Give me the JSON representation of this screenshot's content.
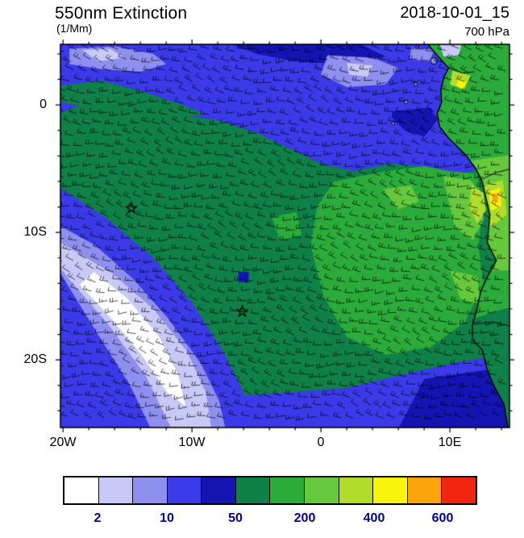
{
  "header": {
    "title": "550nm Extinction",
    "units": "(1/Mm)",
    "datetime": "2018-10-01_15",
    "level": "700 hPa"
  },
  "axes": {
    "y_ticks": [
      {
        "label": "0",
        "lat": 0
      },
      {
        "label": "10S",
        "lat": -10
      },
      {
        "label": "20S",
        "lat": -20
      }
    ],
    "x_ticks": [
      {
        "label": "20W",
        "lon": -20
      },
      {
        "label": "10W",
        "lon": -10
      },
      {
        "label": "0",
        "lon": 0
      },
      {
        "label": "10E",
        "lon": 10
      }
    ]
  },
  "colorbar": {
    "tick_labels": [
      "2",
      "10",
      "50",
      "200",
      "400",
      "600"
    ],
    "tick_boundaries": [
      1,
      3,
      5,
      7,
      9,
      11
    ],
    "label_color": "#000099"
  },
  "chart_data": {
    "type": "heatmap",
    "title": "550nm Extinction",
    "field": "550 nm aerosol extinction with wind barbs",
    "units": "1/Mm",
    "pressure_level": "700 hPa",
    "datetime": "2018-10-01_15",
    "extent": {
      "lon_min": -20.2,
      "lon_max": 14.62,
      "lat_min": -25.3,
      "lat_max": 4.75
    },
    "contour_levels": [
      2,
      5,
      10,
      25,
      50,
      100,
      200,
      300,
      400,
      500,
      600
    ],
    "palette": [
      "#ffffff",
      "#c9c9f7",
      "#8f8ff0",
      "#3a3ae8",
      "#1414b2",
      "#0e8048",
      "#2bab3a",
      "#66c83c",
      "#b2dc2c",
      "#f8f40a",
      "#fba40c",
      "#f32410"
    ],
    "ocean_base_level": 5,
    "land_base_level": 6,
    "regions": [
      {
        "name": "blue-top-band",
        "level": 3,
        "pts": [
          [
            -20.2,
            4.8
          ],
          [
            14.6,
            4.8
          ],
          [
            14.6,
            2.2
          ],
          [
            10.5,
            1.8
          ],
          [
            9.6,
            0.5
          ],
          [
            9.2,
            -0.8
          ],
          [
            9.6,
            -2.0
          ],
          [
            11.2,
            -3.9
          ],
          [
            12.1,
            -5.1
          ],
          [
            9.8,
            -5.6
          ],
          [
            7.6,
            -4.8
          ],
          [
            5.4,
            -4.6
          ],
          [
            2.5,
            -5.2
          ],
          [
            0.0,
            -4.6
          ],
          [
            -2.5,
            -3.4
          ],
          [
            -5.0,
            -2.2
          ],
          [
            -8.0,
            -1.2
          ],
          [
            -11.0,
            -0.8
          ],
          [
            -13.5,
            -0.2
          ],
          [
            -16.0,
            0.6
          ],
          [
            -18.0,
            0.2
          ],
          [
            -20.2,
            -0.6
          ]
        ]
      },
      {
        "name": "green-tongue-nw",
        "level": 5,
        "pts": [
          [
            -20.2,
            1.5
          ],
          [
            -17.0,
            1.9
          ],
          [
            -14.0,
            1.1
          ],
          [
            -11.0,
            0.1
          ],
          [
            -9.0,
            -0.7
          ],
          [
            -12.0,
            -1.3
          ],
          [
            -15.0,
            -0.8
          ],
          [
            -18.0,
            -0.2
          ],
          [
            -20.2,
            0.2
          ]
        ]
      },
      {
        "name": "darkblue-top-center",
        "level": 4,
        "pts": [
          [
            -7.0,
            4.8
          ],
          [
            3.0,
            4.8
          ],
          [
            5.0,
            3.8
          ],
          [
            2.0,
            3.2
          ],
          [
            -2.0,
            3.4
          ],
          [
            -5.0,
            4.0
          ]
        ]
      },
      {
        "name": "darkblue-right-center",
        "level": 4,
        "pts": [
          [
            5.5,
            -0.5
          ],
          [
            8.5,
            -0.2
          ],
          [
            9.0,
            -1.2
          ],
          [
            8.0,
            -2.5
          ],
          [
            6.5,
            -2.0
          ],
          [
            5.5,
            -1.0
          ]
        ]
      },
      {
        "name": "lavender-top-left",
        "level": 2,
        "pts": [
          [
            -19.5,
            4.4
          ],
          [
            -16.0,
            4.6
          ],
          [
            -13.0,
            4.0
          ],
          [
            -12.0,
            3.2
          ],
          [
            -14.0,
            2.6
          ],
          [
            -17.0,
            2.8
          ],
          [
            -19.5,
            3.2
          ]
        ]
      },
      {
        "name": "lavender-core-top-left",
        "level": 1,
        "pts": [
          [
            -18.5,
            4.3
          ],
          [
            -16.3,
            4.4
          ],
          [
            -15.3,
            3.7
          ],
          [
            -17.3,
            3.4
          ]
        ]
      },
      {
        "name": "lavender-top-center",
        "level": 2,
        "pts": [
          [
            0.5,
            3.9
          ],
          [
            4.0,
            3.7
          ],
          [
            6.0,
            2.9
          ],
          [
            5.0,
            1.6
          ],
          [
            2.0,
            1.4
          ],
          [
            0.0,
            2.4
          ]
        ]
      },
      {
        "name": "lavender-core-top-center",
        "level": 1,
        "pts": [
          [
            2.0,
            3.3
          ],
          [
            4.0,
            3.1
          ],
          [
            3.6,
            2.2
          ],
          [
            2.2,
            2.4
          ]
        ]
      },
      {
        "name": "lavender-top-right",
        "level": 2,
        "pts": [
          [
            7.0,
            4.5
          ],
          [
            8.8,
            4.3
          ],
          [
            8.4,
            3.4
          ],
          [
            6.9,
            3.6
          ]
        ]
      },
      {
        "name": "blue-sw-triangle",
        "level": 3,
        "pts": [
          [
            -20.2,
            -6.5
          ],
          [
            -16.5,
            -9.0
          ],
          [
            -13.0,
            -12.0
          ],
          [
            -10.0,
            -15.5
          ],
          [
            -7.5,
            -19.5
          ],
          [
            -5.8,
            -23.0
          ],
          [
            -5.2,
            -25.4
          ],
          [
            -20.2,
            -25.4
          ]
        ]
      },
      {
        "name": "lavender-sw-band",
        "level": 2,
        "pts": [
          [
            -20.2,
            -9.5
          ],
          [
            -17.5,
            -11.0
          ],
          [
            -14.5,
            -13.7
          ],
          [
            -11.8,
            -16.8
          ],
          [
            -9.3,
            -20.3
          ],
          [
            -7.9,
            -23.2
          ],
          [
            -7.4,
            -25.4
          ],
          [
            -13.2,
            -25.4
          ],
          [
            -14.8,
            -22.0
          ],
          [
            -17.3,
            -18.0
          ],
          [
            -20.2,
            -13.2
          ]
        ]
      },
      {
        "name": "light-sw-band",
        "level": 1,
        "pts": [
          [
            -20.2,
            -10.8
          ],
          [
            -16.2,
            -13.2
          ],
          [
            -13.0,
            -16.0
          ],
          [
            -10.4,
            -19.3
          ],
          [
            -8.9,
            -22.6
          ],
          [
            -8.5,
            -25.4
          ],
          [
            -11.6,
            -25.4
          ],
          [
            -13.6,
            -21.2
          ],
          [
            -16.5,
            -17.2
          ],
          [
            -19.4,
            -13.8
          ],
          [
            -20.2,
            -12.8
          ]
        ]
      },
      {
        "name": "white-sw-core",
        "level": 0,
        "pts": [
          [
            -17.6,
            -13.1
          ],
          [
            -15.1,
            -15.1
          ],
          [
            -12.6,
            -18.1
          ],
          [
            -11.1,
            -21.1
          ],
          [
            -10.5,
            -23.6
          ],
          [
            -11.9,
            -22.6
          ],
          [
            -13.9,
            -19.6
          ],
          [
            -16.4,
            -16.6
          ],
          [
            -18.7,
            -14.1
          ]
        ]
      },
      {
        "name": "blue-bottom-band",
        "level": 3,
        "pts": [
          [
            -6.0,
            -22.8
          ],
          [
            2.0,
            -22.2
          ],
          [
            7.0,
            -21.0
          ],
          [
            10.5,
            -20.2
          ],
          [
            14.6,
            -19.5
          ],
          [
            14.6,
            -25.4
          ],
          [
            -6.5,
            -25.4
          ]
        ]
      },
      {
        "name": "darkblue-bottom-right",
        "level": 4,
        "pts": [
          [
            8.0,
            -21.5
          ],
          [
            14.6,
            -20.5
          ],
          [
            14.6,
            -25.4
          ],
          [
            6.0,
            -25.4
          ]
        ]
      },
      {
        "name": "green-bright-main",
        "level": 6,
        "pts": [
          [
            1.0,
            -6.0
          ],
          [
            5.0,
            -5.2
          ],
          [
            8.0,
            -4.8
          ],
          [
            10.0,
            -5.2
          ],
          [
            12.1,
            -5.4
          ],
          [
            12.6,
            -8.0
          ],
          [
            12.2,
            -11.0
          ],
          [
            12.6,
            -14.0
          ],
          [
            11.2,
            -17.0
          ],
          [
            8.5,
            -19.0
          ],
          [
            5.0,
            -19.6
          ],
          [
            2.0,
            -18.2
          ],
          [
            0.2,
            -15.0
          ],
          [
            -0.8,
            -11.0
          ],
          [
            -0.3,
            -8.0
          ]
        ]
      },
      {
        "name": "green-bright-west-patch",
        "level": 6,
        "pts": [
          [
            -3.8,
            -8.8
          ],
          [
            -1.9,
            -8.4
          ],
          [
            -1.5,
            -10.2
          ],
          [
            -3.2,
            -10.6
          ]
        ]
      },
      {
        "name": "green-light-coastal-1",
        "level": 7,
        "pts": [
          [
            9.5,
            -5.6
          ],
          [
            11.6,
            -5.9
          ],
          [
            12.4,
            -7.0
          ],
          [
            12.6,
            -9.0
          ],
          [
            11.8,
            -10.6
          ],
          [
            10.4,
            -9.6
          ],
          [
            9.9,
            -7.6
          ]
        ]
      },
      {
        "name": "green-light-coastal-2",
        "level": 7,
        "pts": [
          [
            10.0,
            -13.0
          ],
          [
            12.1,
            -13.4
          ],
          [
            12.4,
            -15.6
          ],
          [
            10.8,
            -15.2
          ]
        ]
      },
      {
        "name": "green-light-center",
        "level": 7,
        "pts": [
          [
            4.8,
            -6.6
          ],
          [
            7.0,
            -6.3
          ],
          [
            7.6,
            -7.6
          ],
          [
            6.0,
            -8.2
          ]
        ]
      },
      {
        "name": "yellowgreen-coastal",
        "level": 8,
        "pts": [
          [
            11.7,
            -6.3
          ],
          [
            12.6,
            -6.9
          ],
          [
            12.8,
            -8.3
          ],
          [
            12.1,
            -9.3
          ],
          [
            11.5,
            -8.0
          ]
        ]
      },
      {
        "name": "darkblue-speck",
        "level": 4,
        "pts": [
          [
            -6.4,
            -13.1
          ],
          [
            -5.6,
            -13.1
          ],
          [
            -5.6,
            -13.9
          ],
          [
            -6.4,
            -13.9
          ]
        ]
      }
    ],
    "coastline": [
      [
        8.3,
        4.75
      ],
      [
        9.0,
        3.9
      ],
      [
        9.9,
        2.9
      ],
      [
        9.55,
        2.2
      ],
      [
        9.3,
        1.2
      ],
      [
        9.35,
        0.2
      ],
      [
        9.0,
        -0.7
      ],
      [
        9.2,
        -1.7
      ],
      [
        9.9,
        -2.6
      ],
      [
        11.2,
        -3.9
      ],
      [
        12.05,
        -5.05
      ],
      [
        12.5,
        -6.0
      ],
      [
        13.1,
        -8.6
      ],
      [
        12.9,
        -10.8
      ],
      [
        13.6,
        -12.2
      ],
      [
        13.0,
        -13.3
      ],
      [
        12.4,
        -14.6
      ],
      [
        12.1,
        -16.0
      ],
      [
        11.75,
        -17.3
      ],
      [
        11.75,
        -18.4
      ],
      [
        12.5,
        -19.2
      ],
      [
        12.9,
        -20.8
      ],
      [
        13.4,
        -22.0
      ],
      [
        14.2,
        -23.5
      ],
      [
        14.5,
        -25.4
      ]
    ],
    "land_close": [
      [
        14.8,
        -25.4
      ],
      [
        14.8,
        4.8
      ]
    ],
    "land_patches": [
      {
        "name": "land-bright-green",
        "level": 7,
        "pts": [
          [
            11.3,
            -4.4
          ],
          [
            14.8,
            -3.9
          ],
          [
            14.8,
            -13.0
          ],
          [
            12.4,
            -13.0
          ],
          [
            12.9,
            -9.0
          ]
        ]
      },
      {
        "name": "land-yellowgreen",
        "level": 8,
        "pts": [
          [
            12.4,
            -6.4
          ],
          [
            14.1,
            -5.9
          ],
          [
            14.4,
            -8.6
          ],
          [
            13.2,
            -9.6
          ],
          [
            12.7,
            -8.0
          ]
        ]
      },
      {
        "name": "land-yellow",
        "level": 9,
        "pts": [
          [
            13.0,
            -6.8
          ],
          [
            13.9,
            -6.5
          ],
          [
            14.0,
            -7.9
          ],
          [
            13.2,
            -8.3
          ]
        ]
      },
      {
        "name": "land-orange",
        "level": 10,
        "pts": [
          [
            13.3,
            -7.0
          ],
          [
            13.75,
            -6.9
          ],
          [
            13.7,
            -7.6
          ],
          [
            13.3,
            -7.5
          ]
        ]
      },
      {
        "name": "land-yellowgreen-north",
        "level": 8,
        "pts": [
          [
            10.2,
            2.7
          ],
          [
            11.6,
            2.3
          ],
          [
            11.1,
            1.2
          ],
          [
            10.0,
            1.6
          ]
        ]
      },
      {
        "name": "land-yellow-north",
        "level": 9,
        "pts": [
          [
            10.7,
            2.1
          ],
          [
            11.3,
            1.8
          ],
          [
            11.0,
            1.2
          ],
          [
            10.5,
            1.5
          ]
        ]
      },
      {
        "name": "land-darkgreen-south",
        "level": 5,
        "pts": [
          [
            11.7,
            -16.8
          ],
          [
            14.8,
            -15.8
          ],
          [
            14.8,
            -25.4
          ],
          [
            11.7,
            -25.4
          ]
        ]
      },
      {
        "name": "land-light-ne",
        "level": 1,
        "pts": [
          [
            9.2,
            4.8
          ],
          [
            10.9,
            4.8
          ],
          [
            10.7,
            3.9
          ],
          [
            9.5,
            3.8
          ]
        ]
      }
    ],
    "rivers": [
      [
        [
          12.3,
          -5.9
        ],
        [
          13.6,
          -5.3
        ],
        [
          14.8,
          -5.0
        ]
      ],
      [
        [
          11.9,
          -17.2
        ],
        [
          13.3,
          -17.0
        ],
        [
          14.8,
          -17.4
        ]
      ],
      [
        [
          9.9,
          2.9
        ],
        [
          11.0,
          2.5
        ],
        [
          11.9,
          2.6
        ]
      ]
    ],
    "islands": [
      [
        8.75,
        3.45,
        4
      ],
      [
        7.35,
        1.62,
        2
      ],
      [
        6.6,
        0.25,
        2.5
      ],
      [
        5.6,
        -1.45,
        2
      ]
    ],
    "markers": [
      [
        -14.7,
        -8.1
      ],
      [
        -6.1,
        -16.2
      ]
    ],
    "wind": {
      "dx": 14,
      "dy": 13,
      "len": 10.5,
      "base": 188,
      "amp1": 16,
      "amp2": 9,
      "style": "wind-barbs"
    }
  }
}
